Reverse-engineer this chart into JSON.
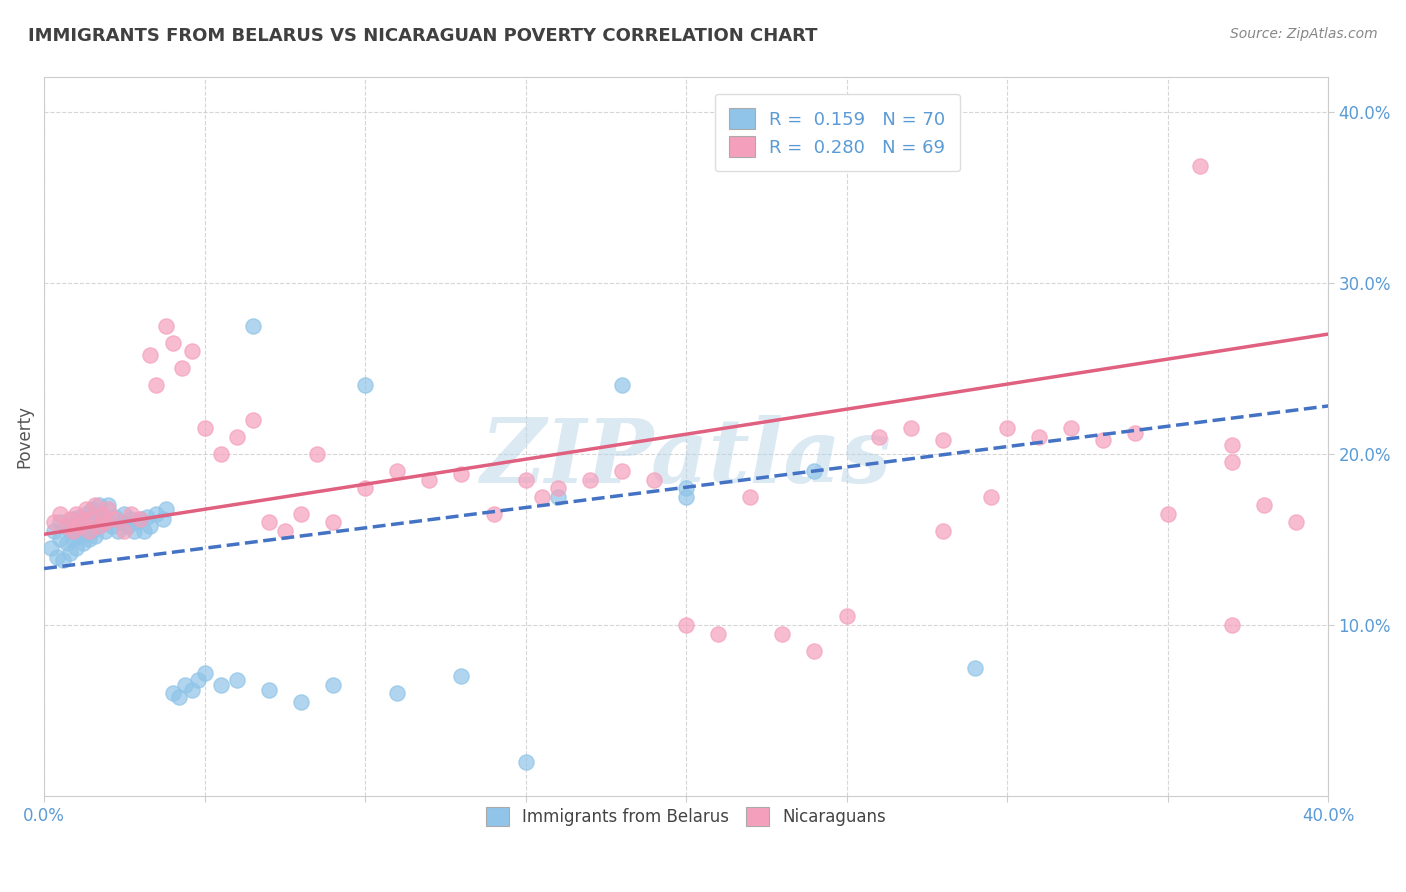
{
  "title": "IMMIGRANTS FROM BELARUS VS NICARAGUAN POVERTY CORRELATION CHART",
  "source": "Source: ZipAtlas.com",
  "ylabel": "Poverty",
  "xlim": [
    0.0,
    0.4
  ],
  "ylim": [
    0.0,
    0.42
  ],
  "yticks": [
    0.1,
    0.2,
    0.3,
    0.4
  ],
  "ytick_labels": [
    "10.0%",
    "20.0%",
    "30.0%",
    "40.0%"
  ],
  "xticks": [
    0.0,
    0.05,
    0.1,
    0.15,
    0.2,
    0.25,
    0.3,
    0.35,
    0.4
  ],
  "legend1_label": "R =  0.159   N = 70",
  "legend2_label": "R =  0.280   N = 69",
  "legend_bottom_label1": "Immigrants from Belarus",
  "legend_bottom_label2": "Nicaraguans",
  "blue_dot_color": "#90c4e8",
  "pink_dot_color": "#f4a0bc",
  "blue_line_color": "#4472c4",
  "pink_line_color": "#e06080",
  "blue_line_style": "--",
  "pink_line_style": "-",
  "watermark": "ZIPatlas",
  "watermark_color": "#b8d4e8",
  "blue_x": [
    0.002,
    0.003,
    0.004,
    0.005,
    0.005,
    0.006,
    0.007,
    0.007,
    0.008,
    0.008,
    0.009,
    0.009,
    0.01,
    0.01,
    0.011,
    0.011,
    0.012,
    0.012,
    0.013,
    0.013,
    0.014,
    0.014,
    0.015,
    0.015,
    0.016,
    0.016,
    0.017,
    0.017,
    0.018,
    0.019,
    0.02,
    0.02,
    0.021,
    0.022,
    0.023,
    0.024,
    0.025,
    0.026,
    0.027,
    0.028,
    0.029,
    0.03,
    0.031,
    0.032,
    0.033,
    0.035,
    0.037,
    0.038,
    0.04,
    0.042,
    0.044,
    0.046,
    0.048,
    0.05,
    0.055,
    0.06,
    0.065,
    0.07,
    0.08,
    0.09,
    0.1,
    0.11,
    0.13,
    0.15,
    0.16,
    0.18,
    0.2,
    0.24,
    0.29,
    0.2
  ],
  "blue_y": [
    0.145,
    0.155,
    0.14,
    0.15,
    0.16,
    0.138,
    0.148,
    0.158,
    0.142,
    0.155,
    0.15,
    0.162,
    0.145,
    0.158,
    0.152,
    0.163,
    0.148,
    0.16,
    0.153,
    0.165,
    0.15,
    0.163,
    0.155,
    0.168,
    0.152,
    0.165,
    0.158,
    0.17,
    0.162,
    0.155,
    0.16,
    0.17,
    0.158,
    0.163,
    0.155,
    0.16,
    0.165,
    0.158,
    0.162,
    0.155,
    0.16,
    0.162,
    0.155,
    0.163,
    0.158,
    0.165,
    0.162,
    0.168,
    0.06,
    0.058,
    0.065,
    0.062,
    0.068,
    0.072,
    0.065,
    0.068,
    0.275,
    0.062,
    0.055,
    0.065,
    0.24,
    0.06,
    0.07,
    0.02,
    0.175,
    0.24,
    0.175,
    0.19,
    0.075,
    0.18
  ],
  "pink_x": [
    0.003,
    0.005,
    0.007,
    0.008,
    0.009,
    0.01,
    0.011,
    0.012,
    0.013,
    0.014,
    0.015,
    0.016,
    0.017,
    0.018,
    0.019,
    0.02,
    0.022,
    0.025,
    0.027,
    0.03,
    0.033,
    0.035,
    0.038,
    0.04,
    0.043,
    0.046,
    0.05,
    0.055,
    0.06,
    0.065,
    0.07,
    0.075,
    0.08,
    0.085,
    0.09,
    0.1,
    0.11,
    0.12,
    0.13,
    0.14,
    0.15,
    0.155,
    0.16,
    0.17,
    0.18,
    0.19,
    0.2,
    0.21,
    0.22,
    0.23,
    0.24,
    0.25,
    0.26,
    0.27,
    0.28,
    0.3,
    0.31,
    0.32,
    0.33,
    0.34,
    0.35,
    0.36,
    0.37,
    0.37,
    0.38,
    0.39,
    0.37,
    0.28,
    0.295
  ],
  "pink_y": [
    0.16,
    0.165,
    0.158,
    0.162,
    0.155,
    0.165,
    0.158,
    0.162,
    0.168,
    0.155,
    0.162,
    0.17,
    0.158,
    0.165,
    0.16,
    0.168,
    0.162,
    0.155,
    0.165,
    0.162,
    0.258,
    0.24,
    0.275,
    0.265,
    0.25,
    0.26,
    0.215,
    0.2,
    0.21,
    0.22,
    0.16,
    0.155,
    0.165,
    0.2,
    0.16,
    0.18,
    0.19,
    0.185,
    0.188,
    0.165,
    0.185,
    0.175,
    0.18,
    0.185,
    0.19,
    0.185,
    0.1,
    0.095,
    0.175,
    0.095,
    0.085,
    0.105,
    0.21,
    0.215,
    0.208,
    0.215,
    0.21,
    0.215,
    0.208,
    0.212,
    0.165,
    0.368,
    0.205,
    0.195,
    0.17,
    0.16,
    0.1,
    0.155,
    0.175
  ],
  "blue_line_x0": 0.0,
  "blue_line_y0": 0.133,
  "blue_line_x1": 0.4,
  "blue_line_y1": 0.228,
  "pink_line_x0": 0.0,
  "pink_line_y0": 0.153,
  "pink_line_x1": 0.4,
  "pink_line_y1": 0.27
}
